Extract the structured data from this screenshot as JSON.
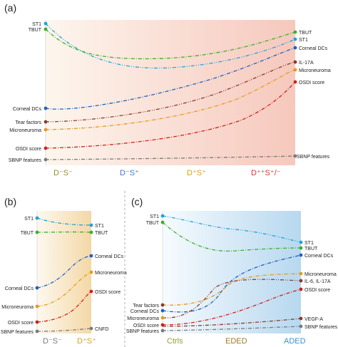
{
  "panels": {
    "a": {
      "label": "(a)",
      "axis": [
        {
          "text": "D⁻S⁻",
          "color": "#9a8a3a"
        },
        {
          "text": "D⁻S⁺",
          "color": "#3f79b8"
        },
        {
          "text": "D⁺S⁺",
          "color": "#d8a21a"
        },
        {
          "text": "D⁺⁺S⁺/⁻",
          "color": "#d13a2e"
        }
      ],
      "left_labels": [
        "ST1",
        "TBUT",
        "Corneal DCs",
        "Tear factors",
        "Microneuroma",
        "OSDI score",
        "SBNP features"
      ],
      "right_labels": [
        "TBUT",
        "ST1",
        "Corneal DCs",
        "IL-17A",
        "Microneuroma",
        "OSDI score",
        "SBNP features"
      ]
    },
    "b": {
      "label": "(b)",
      "axis": [
        {
          "text": "D⁻S⁻",
          "color": "#7a7a7a"
        },
        {
          "text": "D⁺S⁺",
          "color": "#d8a21a"
        }
      ],
      "left_labels": [
        "ST1",
        "TBUT",
        "Corneal DCs",
        "Microneuroma",
        "OSDI score",
        "SBNP features"
      ],
      "right_labels": [
        "ST1",
        "TBUT",
        "Corneal DCs",
        "Microneuroma",
        "OSDI score",
        "CNFD"
      ]
    },
    "c": {
      "label": "(c)",
      "axis": [
        {
          "text": "Ctrls",
          "color": "#9a9a3a"
        },
        {
          "text": "EDED",
          "color": "#9a7a2a"
        },
        {
          "text": "ADED",
          "color": "#3f8fd0"
        }
      ],
      "left_labels": [
        "ST1",
        "TBUT",
        "Tear factors",
        "Corneal DCs",
        "Microneuroma",
        "OSDI score",
        "SBNP features"
      ],
      "right_labels": [
        "ST1",
        "TBUT",
        "Corneal DCs",
        "Microneuroma",
        "IL-6, IL-17A",
        "OSDI score",
        "VEGF-A",
        "SBNP features"
      ]
    }
  },
  "colors": {
    "st1": "#1fa3d6",
    "tbut": "#3fae2a",
    "dcs": "#2060c0",
    "tear": "#8a3a2a",
    "micro": "#e69a1a",
    "osdi": "#d0201a",
    "sbnp": "#7a7a7a"
  }
}
